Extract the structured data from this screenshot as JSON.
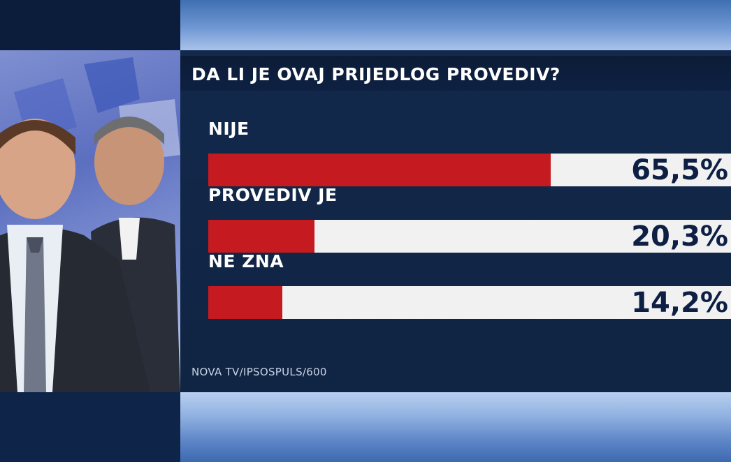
{
  "chart_data": {
    "type": "bar",
    "title": "DA LI JE OVAJ PRIJEDLOG PROVEDIV?",
    "categories": [
      "NIJE",
      "PROVEDIV JE",
      "NE ZNA"
    ],
    "values": [
      65.5,
      20.3,
      14.2
    ],
    "value_labels": [
      "65,5%",
      "20,3%",
      "14,2%"
    ],
    "xlim": [
      0,
      100
    ],
    "orientation": "horizontal",
    "bar_color": "#c41a20",
    "track_color": "#f1f1f1",
    "source": "NOVA TV/IPSOSPULS/600"
  }
}
